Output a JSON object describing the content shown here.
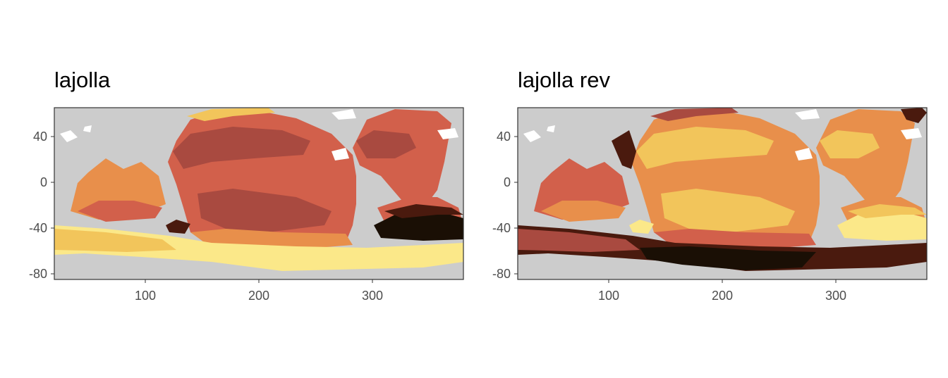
{
  "panels": [
    {
      "title": "lajolla",
      "palette": "lajolla",
      "x_ticks": [
        "100",
        "200",
        "300"
      ],
      "y_ticks": [
        "40",
        "0",
        "-40",
        "-80"
      ]
    },
    {
      "title": "lajolla rev",
      "palette": "lajolla-reversed",
      "x_ticks": [
        "100",
        "200",
        "300"
      ],
      "y_ticks": [
        "40",
        "0",
        "-40",
        "-80"
      ]
    }
  ],
  "map": {
    "x_range": [
      20,
      380
    ],
    "y_range": [
      -85,
      65
    ],
    "land_color": "#cccccc",
    "ice_color": "#ffffff",
    "colors_lajolla": [
      "#1a0f05",
      "#4a1a0e",
      "#a94a40",
      "#d2604b",
      "#e88f4b",
      "#f2c55b",
      "#fbe889"
    ],
    "colors_lajolla_rev": [
      "#fbe889",
      "#f2c55b",
      "#e88f4b",
      "#d2604b",
      "#a94a40",
      "#4a1a0e",
      "#1a0f05"
    ]
  }
}
